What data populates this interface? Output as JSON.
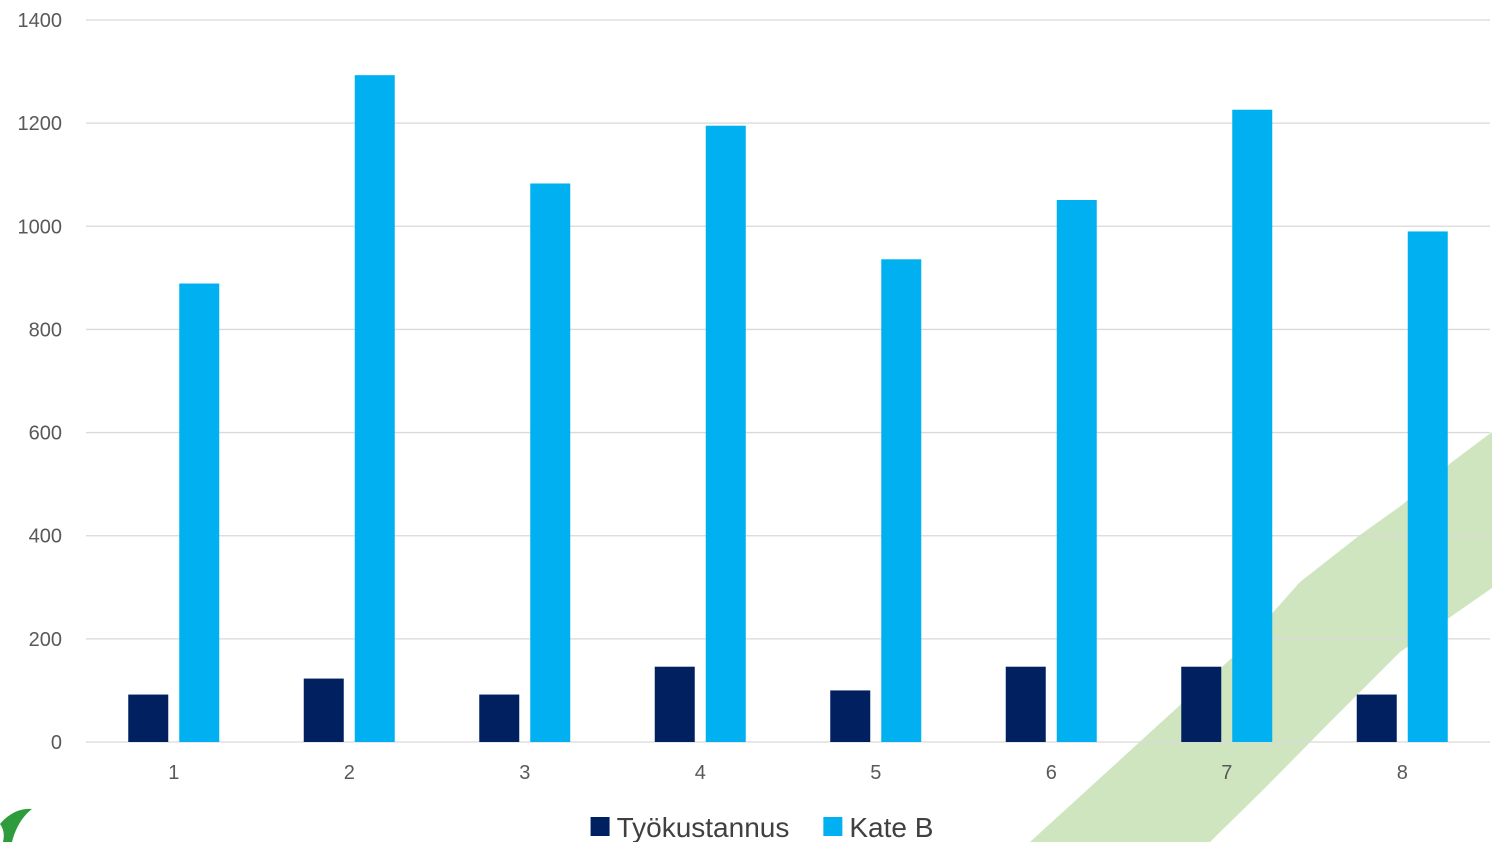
{
  "colors": {
    "background": "#ffffff",
    "gridline": "#d9d9d9",
    "tick_text": "#595959",
    "legend_text": "#404040",
    "decor_green": "#c6e0b4",
    "decor_green_dark": "#2e9b3c"
  },
  "decor": {
    "right_swoosh": "green-leaf-swoosh",
    "left_corner_logo": "green-logo-fragment"
  },
  "chart_data": {
    "type": "bar",
    "title": "",
    "xlabel": "",
    "ylabel": "",
    "categories": [
      "1",
      "2",
      "3",
      "4",
      "5",
      "6",
      "7",
      "8"
    ],
    "y_ticks": [
      "0",
      "200",
      "400",
      "600",
      "800",
      "1000",
      "1200",
      "1400"
    ],
    "ylim": [
      0,
      1400
    ],
    "grid": true,
    "legend_position": "bottom",
    "series": [
      {
        "name": "Työkustannus",
        "color": "#002060",
        "values": [
          92,
          123,
          92,
          146,
          100,
          146,
          146,
          92
        ]
      },
      {
        "name": "Kate B",
        "color": "#00b0f0",
        "values": [
          889,
          1293,
          1083,
          1195,
          936,
          1051,
          1226,
          990
        ]
      }
    ]
  }
}
